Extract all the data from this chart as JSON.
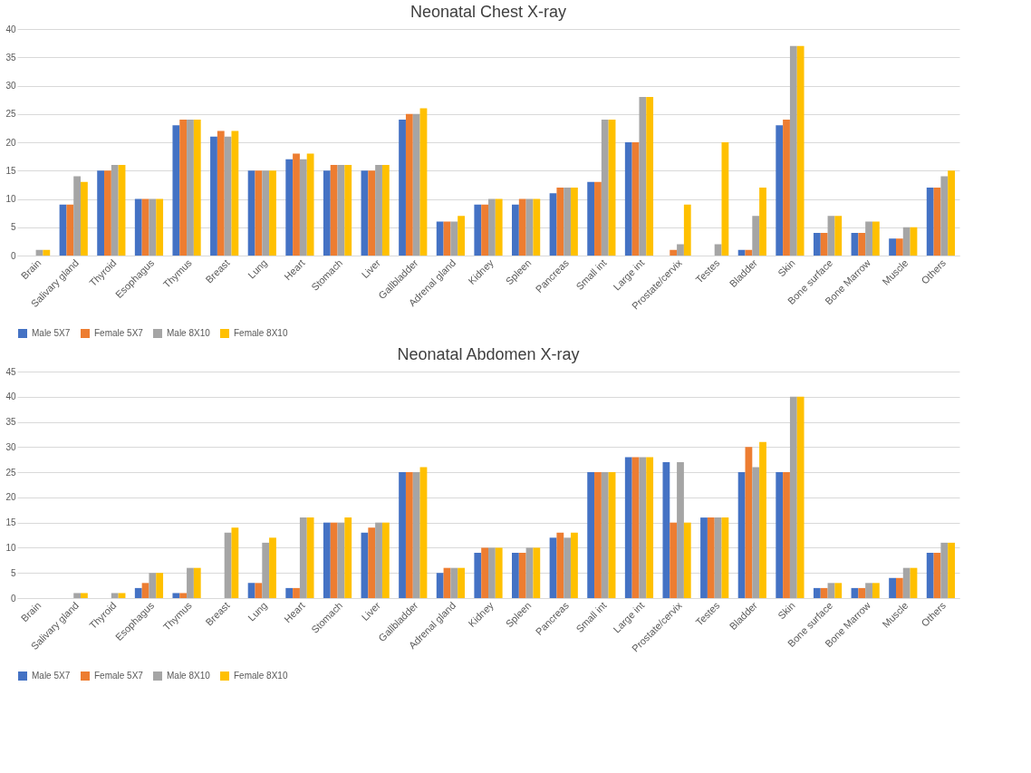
{
  "chart_data": [
    {
      "type": "bar",
      "title": "Neonatal Chest X-ray",
      "categories": [
        "Brain",
        "Salivary gland",
        "Thyroid",
        "Esophagus",
        "Thymus",
        "Breast",
        "Lung",
        "Heart",
        "Stomach",
        "Liver",
        "Gallbladder",
        "Adrenal gland",
        "Kidney",
        "Spleen",
        "Pancreas",
        "Small int",
        "Large int",
        "Prostate/cervix",
        "Testes",
        "Bladder",
        "Skin",
        "Bone surface",
        "Bone Marrow",
        "Muscle",
        "Others"
      ],
      "series": [
        {
          "name": "Male 5X7",
          "color": "#4472c4",
          "values": [
            0,
            9,
            15,
            10,
            23,
            21,
            15,
            17,
            15,
            15,
            24,
            6,
            9,
            9,
            11,
            13,
            20,
            0,
            0,
            1,
            23,
            4,
            4,
            3,
            12
          ]
        },
        {
          "name": "Female 5X7",
          "color": "#ed7d31",
          "values": [
            0,
            9,
            15,
            10,
            24,
            22,
            15,
            18,
            16,
            15,
            25,
            6,
            9,
            10,
            12,
            13,
            20,
            1,
            0,
            1,
            24,
            4,
            4,
            3,
            12
          ]
        },
        {
          "name": "Male 8X10",
          "color": "#a5a5a5",
          "values": [
            1,
            14,
            16,
            10,
            24,
            21,
            15,
            17,
            16,
            16,
            25,
            6,
            10,
            10,
            12,
            24,
            28,
            2,
            2,
            7,
            37,
            7,
            6,
            5,
            14
          ]
        },
        {
          "name": "Female 8X10",
          "color": "#ffc000",
          "values": [
            1,
            13,
            16,
            10,
            24,
            22,
            15,
            18,
            16,
            16,
            26,
            7,
            10,
            10,
            12,
            24,
            28,
            9,
            20,
            12,
            37,
            7,
            6,
            5,
            15
          ]
        }
      ],
      "ylim": [
        0,
        40
      ],
      "yticks": [
        0,
        5,
        10,
        15,
        20,
        25,
        30,
        35,
        40
      ],
      "grid": "y",
      "legend": "bottom"
    },
    {
      "type": "bar",
      "title": "Neonatal Abdomen X-ray",
      "categories": [
        "Brain",
        "Salivary gland",
        "Thyroid",
        "Esophagus",
        "Thymus",
        "Breast",
        "Lung",
        "Heart",
        "Stomach",
        "Liver",
        "Gallbladder",
        "Adrenal gland",
        "Kidney",
        "Spleen",
        "Pancreas",
        "Small int",
        "Large int",
        "Prostate/cervix",
        "Testes",
        "Bladder",
        "Skin",
        "Bone surface",
        "Bone Marrow",
        "Muscle",
        "Others"
      ],
      "series": [
        {
          "name": "Male 5X7",
          "color": "#4472c4",
          "values": [
            0,
            0,
            0,
            2,
            1,
            0,
            3,
            2,
            15,
            13,
            25,
            5,
            9,
            9,
            12,
            25,
            28,
            27,
            16,
            25,
            25,
            2,
            2,
            4,
            9
          ]
        },
        {
          "name": "Female 5X7",
          "color": "#ed7d31",
          "values": [
            0,
            0,
            0,
            3,
            1,
            0,
            3,
            2,
            15,
            14,
            25,
            6,
            10,
            9,
            13,
            25,
            28,
            15,
            16,
            30,
            25,
            2,
            2,
            4,
            9
          ]
        },
        {
          "name": "Male 8X10",
          "color": "#a5a5a5",
          "values": [
            0,
            1,
            1,
            5,
            6,
            13,
            11,
            16,
            15,
            15,
            25,
            6,
            10,
            10,
            12,
            25,
            28,
            27,
            16,
            26,
            40,
            3,
            3,
            6,
            11
          ]
        },
        {
          "name": "Female 8X10",
          "color": "#ffc000",
          "values": [
            0,
            1,
            1,
            5,
            6,
            14,
            12,
            16,
            16,
            15,
            26,
            6,
            10,
            10,
            13,
            25,
            28,
            15,
            16,
            31,
            40,
            3,
            3,
            6,
            11
          ]
        }
      ],
      "ylim": [
        0,
        45
      ],
      "yticks": [
        0,
        5,
        10,
        15,
        20,
        25,
        30,
        35,
        40,
        45
      ],
      "grid": "y",
      "legend": "bottom"
    }
  ]
}
